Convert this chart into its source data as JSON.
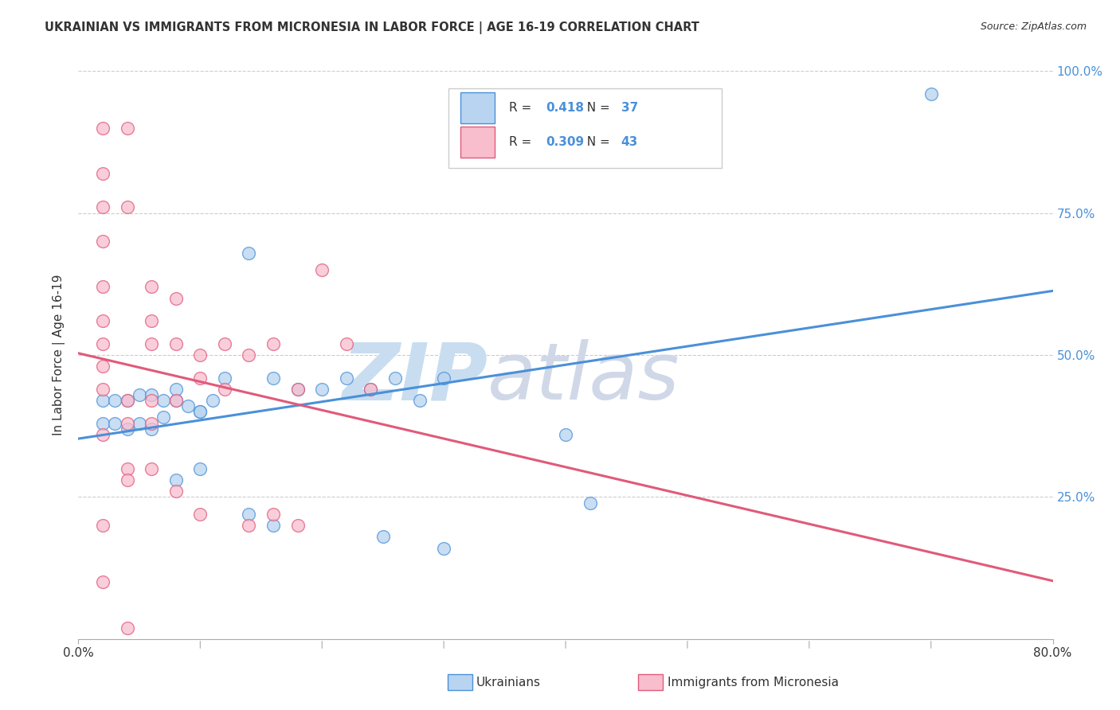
{
  "title": "UKRAINIAN VS IMMIGRANTS FROM MICRONESIA IN LABOR FORCE | AGE 16-19 CORRELATION CHART",
  "source": "Source: ZipAtlas.com",
  "ylabel": "In Labor Force | Age 16-19",
  "blue_R": "0.418",
  "blue_N": "37",
  "pink_R": "0.309",
  "pink_N": "43",
  "blue_color": "#b8d4f0",
  "pink_color": "#f8bece",
  "blue_line_color": "#4a90d9",
  "pink_line_color": "#e05a7a",
  "text_color": "#333333",
  "grid_color": "#cccccc",
  "watermark_zip_color": "#c8ddf0",
  "watermark_atlas_color": "#d0d8e8",
  "blue_scatter_x": [
    0.02,
    0.03,
    0.04,
    0.05,
    0.06,
    0.07,
    0.08,
    0.09,
    0.1,
    0.11,
    0.02,
    0.03,
    0.04,
    0.05,
    0.06,
    0.07,
    0.08,
    0.1,
    0.12,
    0.14,
    0.16,
    0.18,
    0.2,
    0.22,
    0.24,
    0.26,
    0.28,
    0.3,
    0.08,
    0.1,
    0.14,
    0.16,
    0.4,
    0.42,
    0.7,
    0.25,
    0.3
  ],
  "blue_scatter_y": [
    0.42,
    0.42,
    0.42,
    0.43,
    0.43,
    0.42,
    0.42,
    0.41,
    0.4,
    0.42,
    0.38,
    0.38,
    0.37,
    0.38,
    0.37,
    0.39,
    0.44,
    0.4,
    0.46,
    0.68,
    0.46,
    0.44,
    0.44,
    0.46,
    0.44,
    0.46,
    0.42,
    0.46,
    0.28,
    0.3,
    0.22,
    0.2,
    0.36,
    0.24,
    0.96,
    0.18,
    0.16
  ],
  "pink_scatter_x": [
    0.02,
    0.02,
    0.02,
    0.02,
    0.02,
    0.02,
    0.02,
    0.02,
    0.02,
    0.02,
    0.04,
    0.04,
    0.04,
    0.04,
    0.04,
    0.06,
    0.06,
    0.06,
    0.06,
    0.06,
    0.08,
    0.08,
    0.08,
    0.1,
    0.1,
    0.12,
    0.12,
    0.14,
    0.16,
    0.18,
    0.2,
    0.22,
    0.24,
    0.04,
    0.06,
    0.08,
    0.1,
    0.14,
    0.16,
    0.18,
    0.02,
    0.04,
    0.02
  ],
  "pink_scatter_y": [
    0.9,
    0.82,
    0.76,
    0.7,
    0.62,
    0.56,
    0.52,
    0.48,
    0.44,
    0.36,
    0.9,
    0.76,
    0.42,
    0.38,
    0.3,
    0.62,
    0.56,
    0.52,
    0.42,
    0.38,
    0.6,
    0.52,
    0.42,
    0.5,
    0.46,
    0.52,
    0.44,
    0.5,
    0.52,
    0.44,
    0.65,
    0.52,
    0.44,
    0.28,
    0.3,
    0.26,
    0.22,
    0.2,
    0.22,
    0.2,
    0.2,
    0.02,
    0.1
  ]
}
